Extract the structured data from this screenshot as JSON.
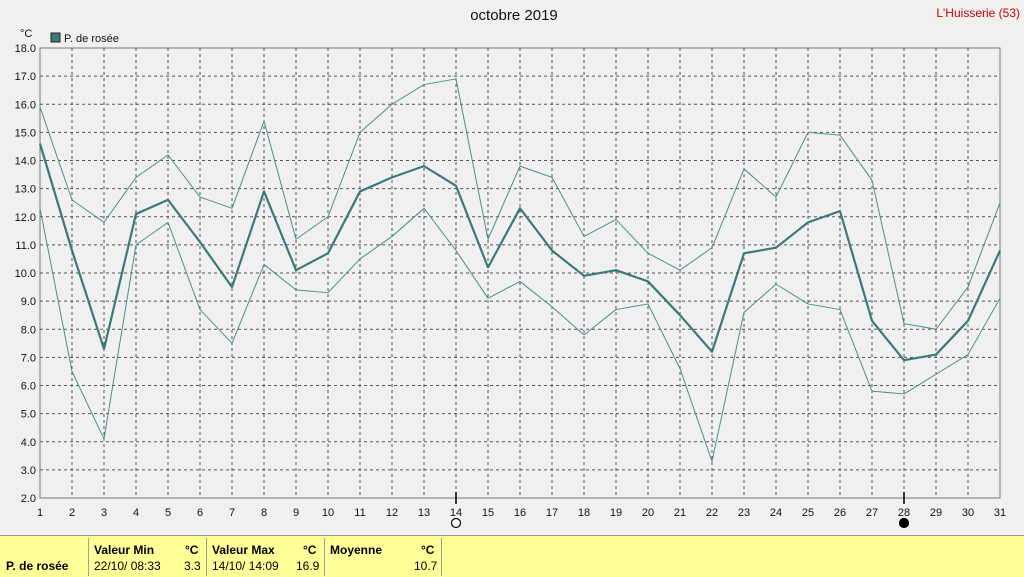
{
  "header": {
    "title": "octobre 2019",
    "station": "L'Huisserie (53)"
  },
  "legend": {
    "series_label": "P. de rosée"
  },
  "colors": {
    "main_line": "#3c7a78",
    "band_line": "#4a8f8a",
    "background": "#f0f0f0",
    "grid": "#555555",
    "stats_bg": "#ffff99",
    "station": "#cc0000"
  },
  "chart_data": {
    "type": "line",
    "title": "octobre 2019",
    "ylabel": "°C",
    "xlabel": "",
    "ylim": [
      2.0,
      18.0
    ],
    "ytick_step": 1.0,
    "y_ticks": [
      "2.0",
      "3.0",
      "4.0",
      "5.0",
      "6.0",
      "7.0",
      "8.0",
      "9.0",
      "10.0",
      "11.0",
      "12.0",
      "13.0",
      "14.0",
      "15.0",
      "16.0",
      "17.0",
      "18.0"
    ],
    "x": [
      "1",
      "2",
      "3",
      "4",
      "5",
      "6",
      "7",
      "8",
      "9",
      "10",
      "11",
      "12",
      "13",
      "14",
      "15",
      "16",
      "17",
      "18",
      "19",
      "20",
      "21",
      "22",
      "23",
      "24",
      "25",
      "26",
      "27",
      "28",
      "29",
      "30",
      "31"
    ],
    "grid": true,
    "legend_position": "top-left",
    "series": [
      {
        "name": "P. de rosée",
        "role": "mean",
        "values": [
          14.6,
          10.8,
          7.3,
          12.1,
          12.6,
          11.1,
          9.5,
          12.9,
          10.1,
          10.7,
          12.9,
          13.4,
          13.8,
          13.1,
          10.2,
          12.3,
          10.8,
          9.9,
          10.1,
          9.7,
          8.5,
          7.2,
          10.7,
          10.9,
          11.8,
          12.2,
          8.3,
          6.9,
          7.1,
          8.3,
          10.8
        ]
      },
      {
        "role": "max",
        "values": [
          15.9,
          12.6,
          11.8,
          13.4,
          14.2,
          12.7,
          12.3,
          15.4,
          11.2,
          12.0,
          15.0,
          16.0,
          16.7,
          16.9,
          11.2,
          13.8,
          13.4,
          11.3,
          11.9,
          10.7,
          10.1,
          10.9,
          13.7,
          12.7,
          15.0,
          14.9,
          13.3,
          8.2,
          8.0,
          9.5,
          12.5
        ]
      },
      {
        "role": "min",
        "values": [
          12.3,
          6.5,
          4.1,
          11.0,
          11.8,
          8.7,
          7.5,
          10.3,
          9.4,
          9.3,
          10.5,
          11.3,
          12.3,
          10.8,
          9.1,
          9.7,
          8.8,
          7.8,
          8.7,
          8.9,
          6.6,
          3.3,
          8.6,
          9.6,
          8.9,
          8.7,
          5.8,
          5.7,
          6.4,
          7.1,
          9.1
        ]
      }
    ],
    "moon_markers": [
      {
        "day": "14",
        "symbol": "full-moon"
      },
      {
        "day": "28",
        "symbol": "new-moon"
      }
    ]
  },
  "stats": {
    "row_label": "P. de rosée",
    "min_header": "Valeur Min",
    "max_header": "Valeur Max",
    "avg_header": "Moyenne",
    "unit": "°C",
    "min_date": "22/10/  08:33",
    "min_value": "3.3",
    "max_date": "14/10/  14:09",
    "max_value": "16.9",
    "avg_value": "10.7"
  }
}
